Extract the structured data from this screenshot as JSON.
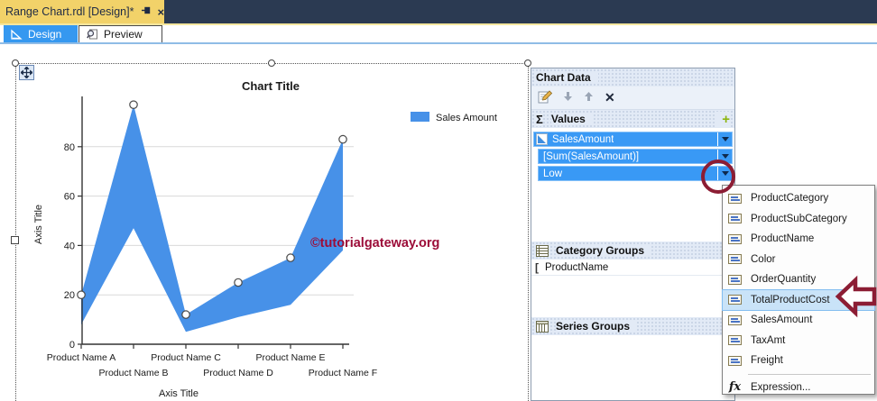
{
  "tab_bar": {
    "document_tab": "Range Chart.rdl [Design]*",
    "design_tab": "Design",
    "preview_tab": "Preview"
  },
  "watermark": "©tutorialgateway.org",
  "panel": {
    "title": "Chart Data",
    "sigma": "Σ",
    "values_label": "Values",
    "add_plus": "+",
    "value_rows": [
      "SalesAmount",
      "[Sum(SalesAmount)]",
      "Low"
    ],
    "category_groups_label": "Category Groups",
    "category_rows": [
      "ProductName"
    ],
    "category_row_icon": "[",
    "series_groups_label": "Series Groups"
  },
  "menu": {
    "items": [
      "ProductCategory",
      "ProductSubCategory",
      "ProductName",
      "Color",
      "OrderQuantity",
      "TotalProductCost",
      "SalesAmount",
      "TaxAmt",
      "Freight"
    ],
    "highlighted_item": "TotalProductCost",
    "expression_label": "Expression...",
    "fx_label": "fx"
  },
  "toolbar_icons": [
    "properties-icon",
    "move-down-arrow-icon",
    "move-up-arrow-icon",
    "delete-x-icon"
  ],
  "chart_data": {
    "type": "area",
    "subtype": "range",
    "title": "Chart Title",
    "xlabel": "Axis Title",
    "ylabel": "Axis Title",
    "categories": [
      "Product Name A",
      "Product Name B",
      "Product Name C",
      "Product Name D",
      "Product Name E",
      "Product Name F"
    ],
    "series": [
      {
        "name": "Sales Amount",
        "high": [
          20,
          97,
          12,
          25,
          35,
          83
        ],
        "low": [
          8,
          47,
          5,
          11,
          16,
          38
        ]
      }
    ],
    "yticks": [
      0,
      20,
      40,
      60,
      80
    ],
    "ylim": [
      0,
      100
    ],
    "grid": true,
    "legend": [
      {
        "label": "Sales Amount",
        "color": "#4791E8"
      }
    ],
    "legend_position": "right-top"
  },
  "colors": {
    "band_blue": "#4791E8",
    "row_blue": "#3999F5",
    "tab_blue": "#3598F0",
    "doc_tab_gold": "#F2D269",
    "annotation_red": "#8C1D34",
    "watermark_red": "#9C0C38"
  }
}
